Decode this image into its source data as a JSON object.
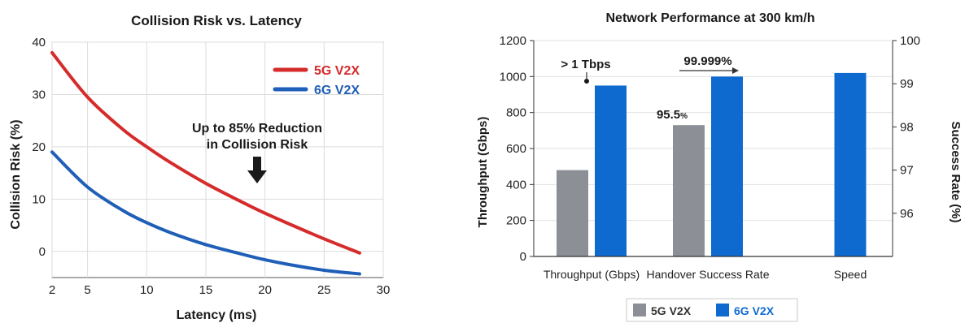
{
  "chart_data": [
    {
      "type": "line",
      "title": "Collision Risk vs. Latency",
      "xlabel": "Latency (ms)",
      "ylabel": "Collision Risk (%)",
      "xlim": [
        2,
        30
      ],
      "ylim": [
        -5,
        40
      ],
      "x_ticks": [
        2,
        5,
        10,
        15,
        20,
        25,
        30
      ],
      "y_ticks": [
        0,
        10,
        20,
        30,
        40
      ],
      "grid": true,
      "legend_position": "top-right",
      "series": [
        {
          "name": "5G V2X",
          "color": "#d62b2b",
          "x": [
            2,
            5,
            8,
            10,
            12,
            15,
            18,
            20,
            22,
            25,
            28
          ],
          "y": [
            38,
            29.5,
            23.3,
            20,
            17,
            13,
            9.5,
            7.3,
            5.3,
            2.4,
            -0.3
          ]
        },
        {
          "name": "6G V2X",
          "color": "#1f5fb8",
          "x": [
            2,
            5,
            8,
            10,
            12,
            15,
            18,
            20,
            22,
            25,
            28
          ],
          "y": [
            19,
            12.3,
            7.8,
            5.5,
            3.6,
            1.3,
            -0.5,
            -1.6,
            -2.5,
            -3.6,
            -4.3
          ]
        }
      ],
      "annotation": {
        "line1": "Up to 85% Reduction",
        "line2": "in Collision Risk",
        "target_x": 17.5,
        "target_y": 10
      }
    },
    {
      "type": "bar",
      "title": "Network Performance at 300 km/h",
      "ylabel": "Throughput (Gbps)",
      "ylabel_right": "Success Rate (%)",
      "ylim": [
        0,
        1200
      ],
      "ylim_right": [
        95,
        100
      ],
      "y_ticks": [
        0,
        200,
        400,
        600,
        800,
        1000,
        1200
      ],
      "y_ticks_right": [
        96,
        97,
        98,
        99,
        100
      ],
      "categories": [
        "Throughput (Gbps)",
        "Handover Success Rate",
        "Speed"
      ],
      "legend_position": "bottom",
      "series": [
        {
          "name": "5G V2X",
          "color": "#8c9096",
          "values": [
            480,
            730,
            null
          ]
        },
        {
          "name": "6G V2X",
          "color": "#0f6ad0",
          "values": [
            950,
            1000,
            1020
          ]
        }
      ],
      "annotations": [
        {
          "text": "> 1 Tbps",
          "category": 0
        },
        {
          "text": "99.999%",
          "category": 1
        },
        {
          "text": "95.5",
          "suffix": "%",
          "category": 1
        }
      ]
    }
  ]
}
